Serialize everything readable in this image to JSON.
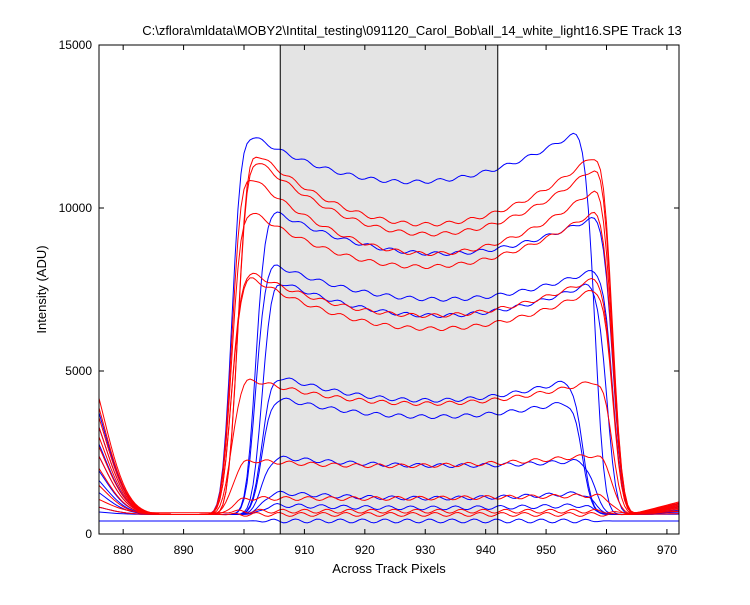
{
  "chart_data": {
    "type": "line",
    "title": "C:\\zflora\\mldata\\MOBY2\\Intital_testing\\091120_Carol_Bob\\all_14_white_light16.SPE   Track 13",
    "xlabel": "Across Track Pixels",
    "ylabel": "Intensity (ADU)",
    "xlim": [
      876,
      972
    ],
    "ylim": [
      0,
      15000
    ],
    "xticks": [
      880,
      890,
      900,
      910,
      920,
      930,
      940,
      950,
      960,
      970
    ],
    "yticks": [
      0,
      5000,
      10000,
      15000
    ],
    "grid": false,
    "shaded_region": {
      "x_start": 906,
      "x_end": 942,
      "color": "#e4e4e4"
    },
    "colors": {
      "blue": "#0000ff",
      "red": "#ff0000",
      "shade": "#e4e4e4"
    },
    "series": [
      {
        "color": "#0000ff",
        "edge_left": 898,
        "edge_right": 955,
        "left_peak": 12600,
        "center": 10800,
        "right_peak": 12800,
        "bump": 4800,
        "base": 600
      },
      {
        "color": "#0000ff",
        "edge_left": 902,
        "edge_right": 958,
        "left_peak": 10200,
        "center": 8600,
        "right_peak": 10100,
        "bump": 4200,
        "base": 600
      },
      {
        "color": "#0000ff",
        "edge_left": 902,
        "edge_right": 958,
        "left_peak": 8500,
        "center": 7200,
        "right_peak": 8400,
        "bump": 3500,
        "base": 600
      },
      {
        "color": "#0000ff",
        "edge_left": 903,
        "edge_right": 957,
        "left_peak": 8000,
        "center": 6700,
        "right_peak": 8000,
        "bump": 3000,
        "base": 600
      },
      {
        "color": "#0000ff",
        "edge_left": 903,
        "edge_right": 953,
        "left_peak": 5000,
        "center": 4100,
        "right_peak": 4900,
        "bump": 2400,
        "base": 600
      },
      {
        "color": "#0000ff",
        "edge_left": 903,
        "edge_right": 953,
        "left_peak": 4300,
        "center": 3600,
        "right_peak": 4200,
        "bump": 2000,
        "base": 600
      },
      {
        "color": "#0000ff",
        "edge_left": 903,
        "edge_right": 955,
        "left_peak": 2400,
        "center": 2100,
        "right_peak": 2300,
        "bump": 1500,
        "base": 600
      },
      {
        "color": "#0000ff",
        "edge_left": 903,
        "edge_right": 955,
        "left_peak": 1300,
        "center": 1100,
        "right_peak": 1300,
        "bump": 900,
        "base": 600
      },
      {
        "color": "#0000ff",
        "edge_left": 903,
        "edge_right": 955,
        "left_peak": 900,
        "center": 800,
        "right_peak": 900,
        "bump": 700,
        "base": 600
      },
      {
        "color": "#0000ff",
        "edge_left": 903,
        "edge_right": 955,
        "left_peak": 400,
        "center": 400,
        "right_peak": 400,
        "bump": 400,
        "base": 400
      },
      {
        "color": "#ff0000",
        "edge_left": 899,
        "edge_right": 958,
        "left_peak": 12200,
        "center": 9500,
        "right_peak": 12300,
        "bump": 5400,
        "base": 600
      },
      {
        "color": "#ff0000",
        "edge_left": 899,
        "edge_right": 958,
        "left_peak": 12000,
        "center": 9200,
        "right_peak": 11900,
        "bump": 5000,
        "base": 600
      },
      {
        "color": "#ff0000",
        "edge_left": 898,
        "edge_right": 958,
        "left_peak": 11500,
        "center": 8600,
        "right_peak": 11200,
        "bump": 4600,
        "base": 600
      },
      {
        "color": "#ff0000",
        "edge_left": 898,
        "edge_right": 958,
        "left_peak": 10300,
        "center": 8200,
        "right_peak": 10400,
        "bump": 4200,
        "base": 600
      },
      {
        "color": "#ff0000",
        "edge_left": 898,
        "edge_right": 958,
        "left_peak": 8300,
        "center": 6700,
        "right_peak": 8200,
        "bump": 3800,
        "base": 600
      },
      {
        "color": "#ff0000",
        "edge_left": 898,
        "edge_right": 958,
        "left_peak": 8200,
        "center": 6300,
        "right_peak": 7900,
        "bump": 3400,
        "base": 600
      },
      {
        "color": "#ff0000",
        "edge_left": 898,
        "edge_right": 958,
        "left_peak": 4900,
        "center": 4000,
        "right_peak": 4900,
        "bump": 3000,
        "base": 600
      },
      {
        "color": "#ff0000",
        "edge_left": 898,
        "edge_right": 958,
        "left_peak": 2300,
        "center": 2100,
        "right_peak": 2500,
        "bump": 2500,
        "base": 600
      },
      {
        "color": "#ff0000",
        "edge_left": 898,
        "edge_right": 958,
        "left_peak": 1100,
        "center": 1100,
        "right_peak": 1200,
        "bump": 1800,
        "base": 600
      },
      {
        "color": "#ff0000",
        "edge_left": 898,
        "edge_right": 958,
        "left_peak": 700,
        "center": 700,
        "right_peak": 700,
        "bump": 1200,
        "base": 650
      },
      {
        "color": "#ff0000",
        "edge_left": 898,
        "edge_right": 958,
        "left_peak": 600,
        "center": 600,
        "right_peak": 600,
        "bump": 900,
        "base": 600
      }
    ]
  }
}
